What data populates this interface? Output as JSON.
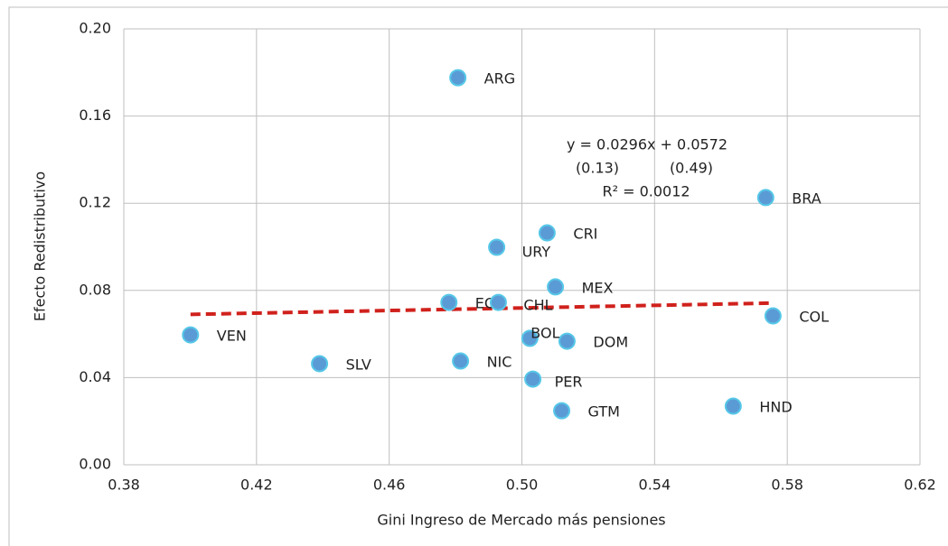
{
  "chart_data": {
    "type": "scatter",
    "x_label": "Gini Ingreso de Mercado más pensiones",
    "y_label": "Efecto Redistributivo",
    "labels": [
      "ARG",
      "BRA",
      "CRI",
      "URY",
      "MEX",
      "ECU",
      "CHL",
      "COL",
      "VEN",
      "BOL",
      "DOM",
      "SLV",
      "NIC",
      "PER",
      "GTM",
      "HND"
    ],
    "x": [
      0.4807,
      0.5735,
      0.5076,
      0.4924,
      0.5101,
      0.478,
      0.4929,
      0.5757,
      0.4001,
      0.5024,
      0.5136,
      0.439,
      0.4815,
      0.5033,
      0.512,
      0.5637
    ],
    "values": [
      0.1776,
      0.1226,
      0.1064,
      0.0998,
      0.0816,
      0.0745,
      0.0745,
      0.0683,
      0.0596,
      0.058,
      0.0567,
      0.0464,
      0.0476,
      0.0393,
      0.0248,
      0.0269
    ],
    "color": "#5b9bd5",
    "edge_color": "#56c8e8",
    "trendline": {
      "x": [
        0.4001,
        0.5757
      ],
      "values": [
        0.069,
        0.0742
      ],
      "color": "#d0211c"
    },
    "annotations": [
      "y = 0.0296x + 0.0572",
      "(0.13)",
      "(0.49)",
      "R² = 0.0012"
    ],
    "xlim": [
      0.38,
      0.62
    ],
    "xticks": [
      0.38,
      0.42,
      0.46,
      {
        "value": 0.5,
        "label": "0.50"
      },
      0.54,
      0.58,
      0.62
    ],
    "ylim": [
      0,
      0.2
    ],
    "yticks": [
      {
        "value": 0,
        "label": "0.00"
      },
      0.04,
      0.08,
      0.12,
      0.16,
      {
        "value": 0.2,
        "label": "0.20"
      }
    ],
    "grid": true
  }
}
